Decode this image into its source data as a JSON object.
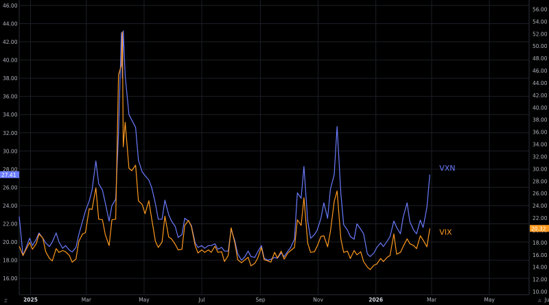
{
  "chart_data": {
    "type": "line",
    "left_axis": {
      "ticks": [
        16,
        18,
        20,
        22,
        24,
        26,
        28,
        30,
        32,
        34,
        36,
        38,
        40,
        42,
        44,
        46
      ],
      "range": [
        14.2,
        46.6
      ]
    },
    "right_axis": {
      "ticks": [
        10,
        12,
        14,
        16,
        18,
        20,
        22,
        24,
        26,
        28,
        30,
        32,
        34,
        36,
        38,
        40,
        42,
        44,
        46,
        48,
        50,
        52,
        54,
        56
      ],
      "range": [
        9.5,
        57.5
      ]
    },
    "x_axis": {
      "range": [
        "2024-12-20",
        "2026-06-12"
      ],
      "ticks": [
        {
          "label": "2025",
          "date": "2025-01-01",
          "bold": true
        },
        {
          "label": "Mar",
          "date": "2025-03-01"
        },
        {
          "label": "May",
          "date": "2025-05-01"
        },
        {
          "label": "Jul",
          "date": "2025-07-01"
        },
        {
          "label": "Sep",
          "date": "2025-09-01"
        },
        {
          "label": "Nov",
          "date": "2025-11-01"
        },
        {
          "label": "2026",
          "date": "2026-01-01",
          "bold": true
        },
        {
          "label": "Mar",
          "date": "2026-03-01"
        },
        {
          "label": "May",
          "date": "2026-05-01"
        },
        {
          "label": "Ju",
          "date": "2026-07-01"
        }
      ]
    },
    "grid": true,
    "series": [
      {
        "name": "VXN",
        "axis": "left",
        "color": "#6b7cff",
        "last_value_label": "27.41",
        "points": [
          [
            "2024-12-20",
            22.8
          ],
          [
            "2024-12-24",
            18.5
          ],
          [
            "2024-12-27",
            19.3
          ],
          [
            "2024-12-31",
            20.4
          ],
          [
            "2025-01-03",
            19.6
          ],
          [
            "2025-01-07",
            20.3
          ],
          [
            "2025-01-10",
            21.0
          ],
          [
            "2025-01-14",
            20.4
          ],
          [
            "2025-01-17",
            19.9
          ],
          [
            "2025-01-21",
            19.5
          ],
          [
            "2025-01-24",
            20.0
          ],
          [
            "2025-01-28",
            21.0
          ],
          [
            "2025-01-31",
            20.0
          ],
          [
            "2025-02-04",
            19.3
          ],
          [
            "2025-02-07",
            19.6
          ],
          [
            "2025-02-11",
            19.1
          ],
          [
            "2025-02-14",
            18.9
          ],
          [
            "2025-02-18",
            19.4
          ],
          [
            "2025-02-21",
            20.8
          ],
          [
            "2025-02-25",
            22.3
          ],
          [
            "2025-02-28",
            23.4
          ],
          [
            "2025-03-04",
            24.5
          ],
          [
            "2025-03-07",
            25.7
          ],
          [
            "2025-03-11",
            28.9
          ],
          [
            "2025-03-14",
            26.4
          ],
          [
            "2025-03-18",
            25.7
          ],
          [
            "2025-03-21",
            24.3
          ],
          [
            "2025-03-25",
            22.3
          ],
          [
            "2025-03-28",
            24.0
          ],
          [
            "2025-04-01",
            24.7
          ],
          [
            "2025-04-04",
            32.0
          ],
          [
            "2025-04-07",
            43.0
          ],
          [
            "2025-04-08",
            38.0
          ],
          [
            "2025-04-09",
            43.2
          ],
          [
            "2025-04-11",
            38.3
          ],
          [
            "2025-04-15",
            34.0
          ],
          [
            "2025-04-18",
            33.4
          ],
          [
            "2025-04-22",
            32.6
          ],
          [
            "2025-04-25",
            29.0
          ],
          [
            "2025-04-29",
            27.7
          ],
          [
            "2025-05-02",
            27.3
          ],
          [
            "2025-05-06",
            26.8
          ],
          [
            "2025-05-09",
            26.0
          ],
          [
            "2025-05-13",
            24.2
          ],
          [
            "2025-05-16",
            22.5
          ],
          [
            "2025-05-20",
            22.5
          ],
          [
            "2025-05-23",
            24.6
          ],
          [
            "2025-05-27",
            23.0
          ],
          [
            "2025-05-30",
            22.3
          ],
          [
            "2025-06-03",
            21.7
          ],
          [
            "2025-06-06",
            20.5
          ],
          [
            "2025-06-10",
            20.8
          ],
          [
            "2025-06-13",
            22.6
          ],
          [
            "2025-06-17",
            22.3
          ],
          [
            "2025-06-20",
            21.8
          ],
          [
            "2025-06-24",
            19.9
          ],
          [
            "2025-06-27",
            19.4
          ],
          [
            "2025-07-01",
            19.6
          ],
          [
            "2025-07-04",
            19.3
          ],
          [
            "2025-07-08",
            19.6
          ],
          [
            "2025-07-11",
            19.6
          ],
          [
            "2025-07-15",
            19.8
          ],
          [
            "2025-07-18",
            19.2
          ],
          [
            "2025-07-22",
            19.4
          ],
          [
            "2025-07-25",
            19.0
          ],
          [
            "2025-07-29",
            19.0
          ],
          [
            "2025-08-01",
            21.4
          ],
          [
            "2025-08-05",
            20.1
          ],
          [
            "2025-08-08",
            18.7
          ],
          [
            "2025-08-12",
            18.0
          ],
          [
            "2025-08-15",
            18.3
          ],
          [
            "2025-08-19",
            19.0
          ],
          [
            "2025-08-22",
            18.4
          ],
          [
            "2025-08-26",
            18.3
          ],
          [
            "2025-08-29",
            18.9
          ],
          [
            "2025-09-02",
            19.6
          ],
          [
            "2025-09-05",
            18.2
          ],
          [
            "2025-09-09",
            18.0
          ],
          [
            "2025-09-12",
            18.1
          ],
          [
            "2025-09-16",
            18.3
          ],
          [
            "2025-09-19",
            18.2
          ],
          [
            "2025-09-23",
            18.8
          ],
          [
            "2025-09-26",
            18.4
          ],
          [
            "2025-09-30",
            19.0
          ],
          [
            "2025-10-03",
            19.4
          ],
          [
            "2025-10-07",
            20.3
          ],
          [
            "2025-10-10",
            25.4
          ],
          [
            "2025-10-14",
            24.8
          ],
          [
            "2025-10-17",
            28.3
          ],
          [
            "2025-10-21",
            22.3
          ],
          [
            "2025-10-24",
            20.4
          ],
          [
            "2025-10-28",
            20.8
          ],
          [
            "2025-10-31",
            21.3
          ],
          [
            "2025-11-04",
            22.6
          ],
          [
            "2025-11-07",
            24.3
          ],
          [
            "2025-11-11",
            22.6
          ],
          [
            "2025-11-14",
            25.8
          ],
          [
            "2025-11-18",
            27.4
          ],
          [
            "2025-11-21",
            32.7
          ],
          [
            "2025-11-25",
            25.3
          ],
          [
            "2025-11-28",
            21.9
          ],
          [
            "2025-12-02",
            21.3
          ],
          [
            "2025-12-05",
            20.6
          ],
          [
            "2025-12-09",
            20.3
          ],
          [
            "2025-12-12",
            22.0
          ],
          [
            "2025-12-16",
            21.4
          ],
          [
            "2025-12-19",
            20.9
          ],
          [
            "2025-12-23",
            18.7
          ],
          [
            "2025-12-26",
            18.4
          ],
          [
            "2025-12-30",
            18.8
          ],
          [
            "2026-01-02",
            19.4
          ],
          [
            "2026-01-06",
            19.9
          ],
          [
            "2026-01-09",
            19.5
          ],
          [
            "2026-01-13",
            20.1
          ],
          [
            "2026-01-16",
            20.6
          ],
          [
            "2026-01-20",
            22.3
          ],
          [
            "2026-01-23",
            21.6
          ],
          [
            "2026-01-27",
            20.9
          ],
          [
            "2026-01-30",
            22.8
          ],
          [
            "2026-02-03",
            24.3
          ],
          [
            "2026-02-06",
            22.2
          ],
          [
            "2026-02-10",
            21.3
          ],
          [
            "2026-02-13",
            20.9
          ],
          [
            "2026-02-17",
            22.4
          ],
          [
            "2026-02-20",
            21.6
          ],
          [
            "2026-02-24",
            23.8
          ],
          [
            "2026-02-27",
            27.4
          ]
        ]
      },
      {
        "name": "VIX",
        "axis": "right",
        "color": "#ff9a1f",
        "last_value_label": "20.32",
        "points": [
          [
            "2024-12-20",
            17.4
          ],
          [
            "2024-12-24",
            15.9
          ],
          [
            "2024-12-27",
            16.8
          ],
          [
            "2024-12-31",
            18.0
          ],
          [
            "2025-01-03",
            16.9
          ],
          [
            "2025-01-07",
            17.8
          ],
          [
            "2025-01-10",
            19.4
          ],
          [
            "2025-01-14",
            18.7
          ],
          [
            "2025-01-17",
            16.5
          ],
          [
            "2025-01-21",
            15.4
          ],
          [
            "2025-01-24",
            15.0
          ],
          [
            "2025-01-28",
            17.0
          ],
          [
            "2025-01-31",
            16.4
          ],
          [
            "2025-02-04",
            16.7
          ],
          [
            "2025-02-07",
            16.5
          ],
          [
            "2025-02-11",
            15.9
          ],
          [
            "2025-02-14",
            14.8
          ],
          [
            "2025-02-18",
            15.3
          ],
          [
            "2025-02-21",
            18.2
          ],
          [
            "2025-02-25",
            19.4
          ],
          [
            "2025-02-28",
            19.6
          ],
          [
            "2025-03-04",
            23.5
          ],
          [
            "2025-03-07",
            23.4
          ],
          [
            "2025-03-11",
            26.9
          ],
          [
            "2025-03-14",
            21.8
          ],
          [
            "2025-03-18",
            21.7
          ],
          [
            "2025-03-21",
            19.3
          ],
          [
            "2025-03-25",
            17.5
          ],
          [
            "2025-03-28",
            21.7
          ],
          [
            "2025-04-01",
            21.8
          ],
          [
            "2025-04-04",
            45.3
          ],
          [
            "2025-04-07",
            46.9
          ],
          [
            "2025-04-08",
            52.3
          ],
          [
            "2025-04-09",
            33.6
          ],
          [
            "2025-04-11",
            37.6
          ],
          [
            "2025-04-15",
            30.1
          ],
          [
            "2025-04-18",
            29.7
          ],
          [
            "2025-04-22",
            30.6
          ],
          [
            "2025-04-25",
            24.8
          ],
          [
            "2025-04-29",
            24.2
          ],
          [
            "2025-05-02",
            22.7
          ],
          [
            "2025-05-06",
            24.8
          ],
          [
            "2025-05-09",
            21.9
          ],
          [
            "2025-05-13",
            18.2
          ],
          [
            "2025-05-16",
            17.2
          ],
          [
            "2025-05-20",
            18.1
          ],
          [
            "2025-05-23",
            22.3
          ],
          [
            "2025-05-27",
            18.9
          ],
          [
            "2025-05-30",
            18.6
          ],
          [
            "2025-06-03",
            17.7
          ],
          [
            "2025-06-06",
            16.8
          ],
          [
            "2025-06-10",
            16.9
          ],
          [
            "2025-06-13",
            20.8
          ],
          [
            "2025-06-17",
            21.6
          ],
          [
            "2025-06-20",
            20.6
          ],
          [
            "2025-06-24",
            17.5
          ],
          [
            "2025-06-27",
            16.3
          ],
          [
            "2025-07-01",
            16.8
          ],
          [
            "2025-07-04",
            16.4
          ],
          [
            "2025-07-08",
            16.8
          ],
          [
            "2025-07-11",
            16.4
          ],
          [
            "2025-07-15",
            17.4
          ],
          [
            "2025-07-18",
            16.4
          ],
          [
            "2025-07-22",
            16.5
          ],
          [
            "2025-07-25",
            14.9
          ],
          [
            "2025-07-29",
            15.9
          ],
          [
            "2025-08-01",
            20.4
          ],
          [
            "2025-08-05",
            17.9
          ],
          [
            "2025-08-08",
            15.2
          ],
          [
            "2025-08-12",
            14.7
          ],
          [
            "2025-08-15",
            15.1
          ],
          [
            "2025-08-19",
            15.6
          ],
          [
            "2025-08-22",
            14.2
          ],
          [
            "2025-08-26",
            14.6
          ],
          [
            "2025-08-29",
            15.4
          ],
          [
            "2025-09-02",
            17.2
          ],
          [
            "2025-09-05",
            15.2
          ],
          [
            "2025-09-09",
            15.0
          ],
          [
            "2025-09-12",
            14.8
          ],
          [
            "2025-09-16",
            16.4
          ],
          [
            "2025-09-19",
            15.5
          ],
          [
            "2025-09-23",
            16.6
          ],
          [
            "2025-09-26",
            15.3
          ],
          [
            "2025-09-30",
            16.3
          ],
          [
            "2025-10-03",
            16.7
          ],
          [
            "2025-10-07",
            17.2
          ],
          [
            "2025-10-10",
            21.7
          ],
          [
            "2025-10-14",
            20.8
          ],
          [
            "2025-10-17",
            25.3
          ],
          [
            "2025-10-21",
            17.9
          ],
          [
            "2025-10-24",
            16.4
          ],
          [
            "2025-10-28",
            16.5
          ],
          [
            "2025-10-31",
            17.4
          ],
          [
            "2025-11-04",
            19.0
          ],
          [
            "2025-11-07",
            19.1
          ],
          [
            "2025-11-11",
            17.3
          ],
          [
            "2025-11-14",
            19.8
          ],
          [
            "2025-11-18",
            24.7
          ],
          [
            "2025-11-21",
            26.4
          ],
          [
            "2025-11-25",
            18.6
          ],
          [
            "2025-11-28",
            16.4
          ],
          [
            "2025-12-02",
            16.6
          ],
          [
            "2025-12-05",
            15.4
          ],
          [
            "2025-12-09",
            16.7
          ],
          [
            "2025-12-12",
            16.0
          ],
          [
            "2025-12-16",
            16.5
          ],
          [
            "2025-12-19",
            14.9
          ],
          [
            "2025-12-23",
            14.0
          ],
          [
            "2025-12-26",
            13.6
          ],
          [
            "2025-12-30",
            14.3
          ],
          [
            "2026-01-02",
            14.5
          ],
          [
            "2026-01-06",
            15.4
          ],
          [
            "2026-01-09",
            14.9
          ],
          [
            "2026-01-13",
            15.6
          ],
          [
            "2026-01-16",
            15.9
          ],
          [
            "2026-01-20",
            19.4
          ],
          [
            "2026-01-23",
            16.1
          ],
          [
            "2026-01-27",
            16.4
          ],
          [
            "2026-01-30",
            17.4
          ],
          [
            "2026-02-03",
            18.6
          ],
          [
            "2026-02-06",
            17.8
          ],
          [
            "2026-02-10",
            17.5
          ],
          [
            "2026-02-13",
            17.0
          ],
          [
            "2026-02-17",
            19.1
          ],
          [
            "2026-02-20",
            18.4
          ],
          [
            "2026-02-24",
            17.3
          ],
          [
            "2026-02-27",
            20.3
          ]
        ]
      }
    ]
  },
  "corner_left": "Z",
  "corner_right": "A"
}
